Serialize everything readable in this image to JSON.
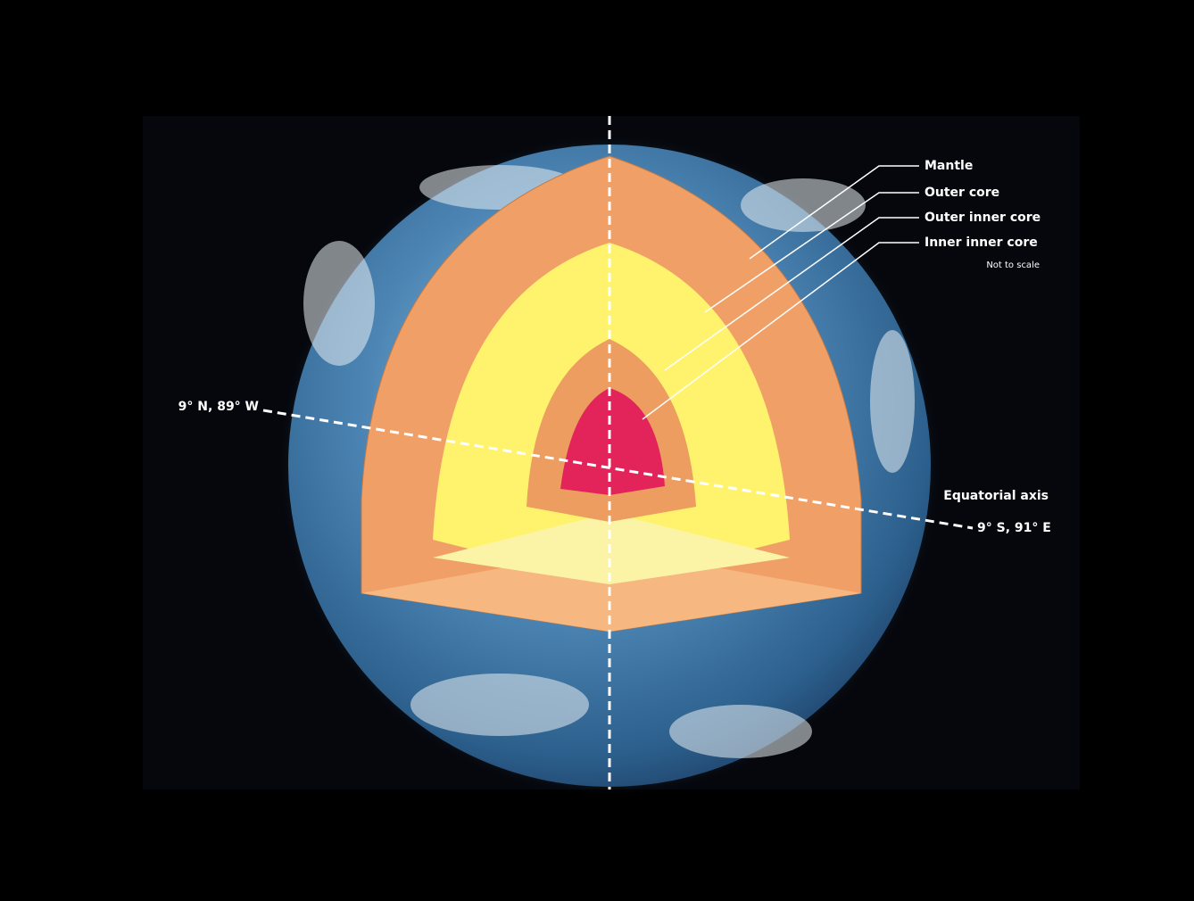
{
  "labels": {
    "layers": [
      "Mantle",
      "Outer core",
      "Outer inner core",
      "Inner inner core"
    ],
    "note": "Not to scale",
    "left_point": "9° N, 89° W",
    "axis": "Equatorial axis",
    "right_point": "9° S, 91° E"
  }
}
